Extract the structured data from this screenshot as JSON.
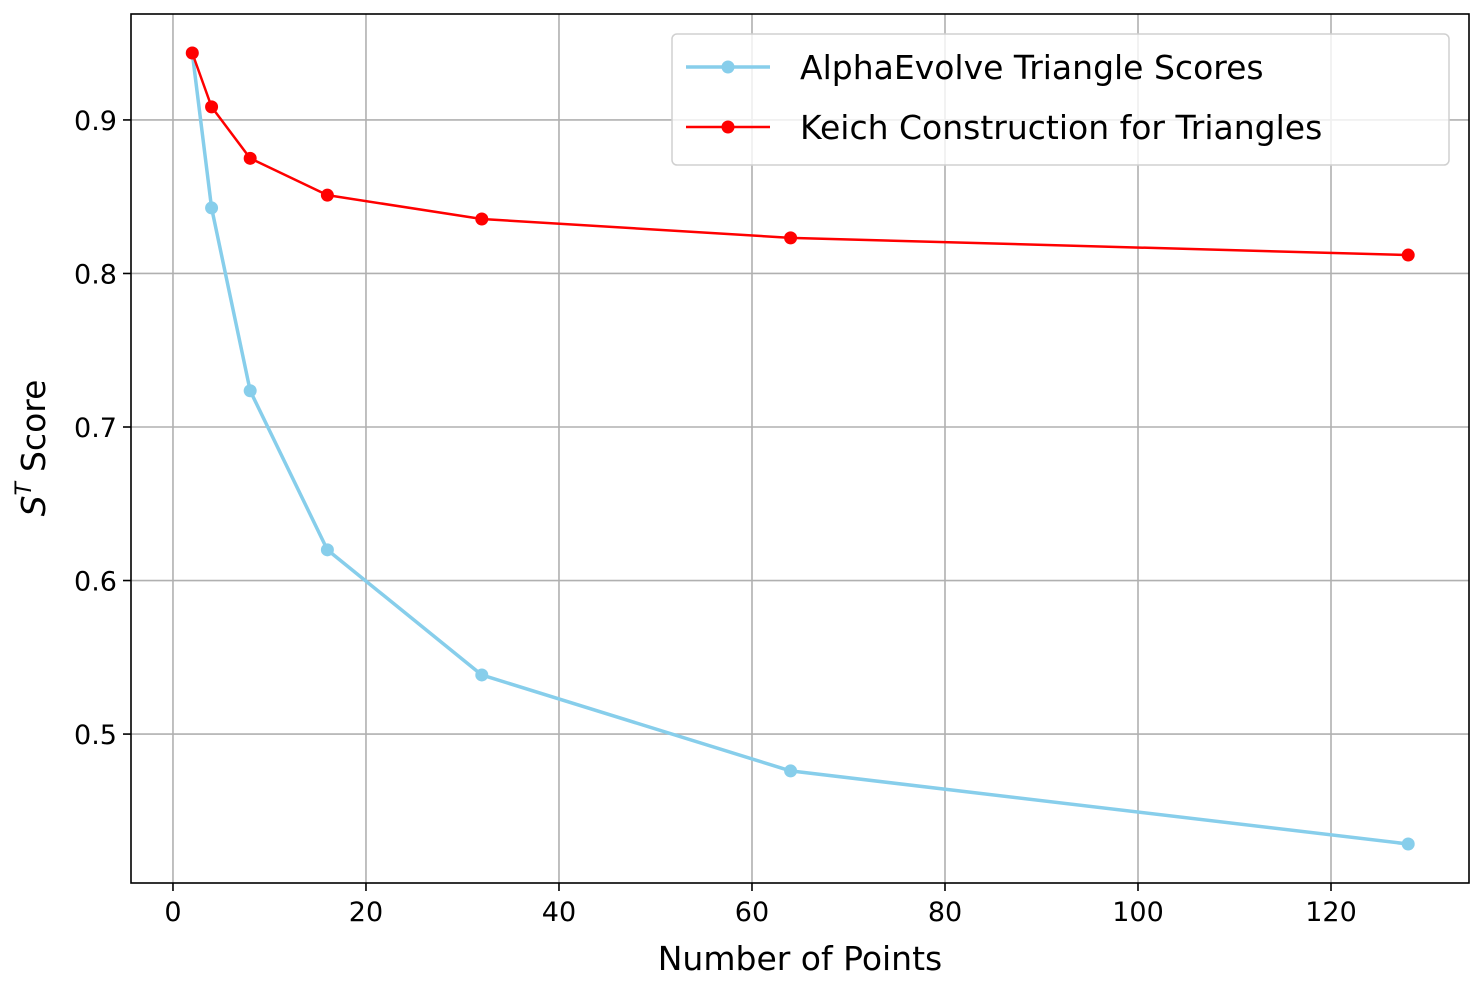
{
  "chart_data": {
    "type": "line",
    "title": "",
    "xlabel": "Number of Points",
    "ylabel": {
      "symbol": "S",
      "superscript": "T",
      "text": "Score"
    },
    "xlim": [
      -4.35,
      134.3
    ],
    "ylim": [
      0.403,
      0.969
    ],
    "xticks": [
      0,
      20,
      40,
      60,
      80,
      100,
      120
    ],
    "yticks": [
      0.5,
      0.6,
      0.7,
      0.8,
      0.9
    ],
    "grid": true,
    "legend_position": "top-right",
    "x": [
      2,
      4,
      8,
      16,
      32,
      64,
      128
    ],
    "series": [
      {
        "name": "AlphaEvolve Triangle Scores",
        "color": "#87CEEB",
        "values": [
          0.9436,
          0.8427,
          0.7236,
          0.62,
          0.5385,
          0.476,
          0.4284
        ]
      },
      {
        "name": "Keich Construction for Triangles",
        "color": "#FF0000",
        "values": [
          0.9436,
          0.9085,
          0.875,
          0.851,
          0.8355,
          0.8232,
          0.812
        ]
      }
    ]
  }
}
